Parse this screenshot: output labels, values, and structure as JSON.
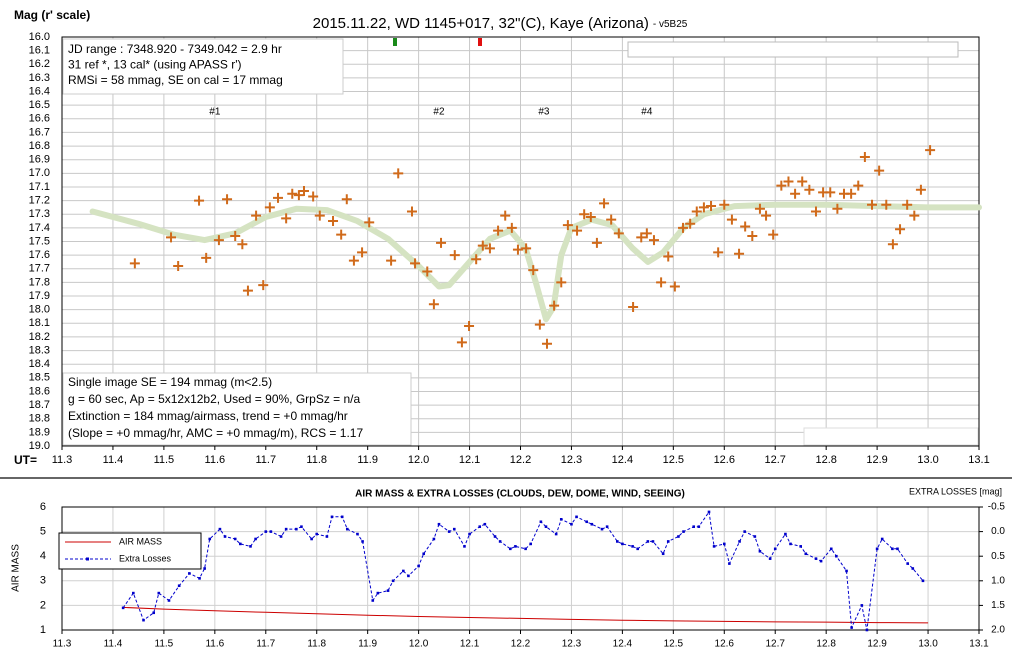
{
  "chart_data": [
    {
      "type": "scatter",
      "title": "2015.11.22, WD 1145+017, 32\"(C), Kaye (Arizona)",
      "subtitle": "- v5B25",
      "ylabel": "Mag (r' scale)",
      "xlabel": "UT=",
      "xlim": [
        11.3,
        13.1
      ],
      "xticks": [
        11.3,
        11.4,
        11.5,
        11.6,
        11.7,
        11.8,
        11.9,
        {
          "value": 12,
          "label": "12.0"
        },
        12.1,
        12.2,
        12.3,
        12.4,
        12.5,
        12.6,
        12.7,
        12.8,
        12.9,
        {
          "value": 13,
          "label": "13.0"
        },
        13.1
      ],
      "ylim": [
        16,
        19
      ],
      "y_inverted": true,
      "yticks": [
        {
          "value": 16,
          "label": "16.0"
        },
        16.1,
        16.2,
        16.3,
        16.4,
        16.5,
        16.6,
        16.7,
        16.8,
        16.9,
        {
          "value": 17,
          "label": "17.0"
        },
        17.1,
        17.2,
        17.3,
        17.4,
        17.5,
        17.6,
        17.7,
        17.8,
        17.9,
        {
          "value": 18,
          "label": "18.0"
        },
        18.1,
        18.2,
        18.3,
        18.4,
        18.5,
        18.6,
        18.7,
        18.8,
        18.9,
        {
          "value": 19,
          "label": "19.0"
        }
      ],
      "grid": true,
      "series": [
        {
          "type": "line",
          "color": "#d5e3c2",
          "x": [
            11.36,
            11.45,
            11.52,
            11.58,
            11.64,
            11.7,
            11.76,
            11.82,
            11.88,
            11.94,
            12.0,
            12.04,
            12.06,
            12.1,
            12.14,
            12.18,
            12.21,
            12.23,
            12.25,
            12.265,
            12.28,
            12.3,
            12.34,
            12.38,
            12.42,
            12.45,
            12.48,
            12.52,
            12.56,
            12.62,
            12.7,
            12.8,
            12.9,
            13.0,
            13.1
          ],
          "values": [
            17.28,
            17.37,
            17.45,
            17.49,
            17.44,
            17.32,
            17.26,
            17.27,
            17.35,
            17.48,
            17.68,
            17.83,
            17.82,
            17.65,
            17.48,
            17.42,
            17.55,
            17.8,
            18.07,
            17.98,
            17.6,
            17.4,
            17.34,
            17.38,
            17.55,
            17.65,
            17.58,
            17.4,
            17.3,
            17.24,
            17.23,
            17.23,
            17.24,
            17.25,
            17.25
          ]
        },
        {
          "type": "scatter",
          "color": "#d06a1a",
          "x": [
            11.443,
            11.514,
            11.528,
            11.569,
            11.583,
            11.608,
            11.624,
            11.64,
            11.654,
            11.665,
            11.681,
            11.695,
            11.708,
            11.724,
            11.74,
            11.752,
            11.765,
            11.775,
            11.793,
            11.806,
            11.832,
            11.848,
            11.859,
            11.873,
            11.889,
            11.903,
            11.946,
            11.96,
            11.987,
            11.993,
            12.017,
            12.03,
            12.044,
            12.071,
            12.085,
            12.099,
            12.113,
            12.126,
            12.14,
            12.156,
            12.17,
            12.183,
            12.195,
            12.211,
            12.225,
            12.238,
            12.252,
            12.266,
            12.28,
            12.293,
            12.311,
            12.325,
            12.338,
            12.35,
            12.364,
            12.378,
            12.393,
            12.421,
            12.437,
            12.448,
            12.462,
            12.476,
            12.49,
            12.503,
            12.519,
            12.533,
            12.546,
            12.56,
            12.574,
            12.588,
            12.6,
            12.615,
            12.629,
            12.641,
            12.655,
            12.67,
            12.682,
            12.696,
            12.712,
            12.726,
            12.739,
            12.753,
            12.767,
            12.78,
            12.794,
            12.808,
            12.822,
            12.835,
            12.849,
            12.863,
            12.876,
            12.89,
            12.904,
            12.918,
            12.931,
            12.945,
            12.959,
            12.973,
            12.986,
            13.004
          ],
          "values": [
            17.66,
            17.47,
            17.68,
            17.2,
            17.62,
            17.49,
            17.19,
            17.46,
            17.52,
            17.86,
            17.31,
            17.82,
            17.25,
            17.18,
            17.33,
            17.15,
            17.16,
            17.13,
            17.17,
            17.31,
            17.35,
            17.45,
            17.19,
            17.64,
            17.58,
            17.36,
            17.64,
            17.0,
            17.28,
            17.66,
            17.72,
            17.96,
            17.51,
            17.6,
            18.24,
            18.12,
            17.63,
            17.53,
            17.55,
            17.42,
            17.31,
            17.4,
            17.56,
            17.55,
            17.71,
            18.11,
            18.25,
            17.97,
            17.8,
            17.38,
            17.42,
            17.3,
            17.32,
            17.51,
            17.22,
            17.34,
            17.44,
            17.98,
            17.47,
            17.44,
            17.49,
            17.8,
            17.61,
            17.83,
            17.4,
            17.37,
            17.28,
            17.25,
            17.24,
            17.58,
            17.23,
            17.34,
            17.59,
            17.39,
            17.46,
            17.26,
            17.31,
            17.45,
            17.09,
            17.06,
            17.15,
            17.06,
            17.12,
            17.28,
            17.14,
            17.14,
            17.26,
            17.15,
            17.15,
            17.09,
            16.88,
            17.23,
            16.98,
            17.23,
            17.52,
            17.41,
            17.23,
            17.31,
            17.12,
            16.83
          ]
        }
      ],
      "annotations": [
        {
          "text": "#1",
          "x": 11.6,
          "y": 16.55
        },
        {
          "text": "#2",
          "x": 12.04,
          "y": 16.55
        },
        {
          "text": "#3",
          "x": 12.246,
          "y": 16.55
        },
        {
          "text": "#4",
          "x": 12.448,
          "y": 16.55
        }
      ],
      "text_boxes": [
        [
          "JD range : 7348.920 - 7349.042 = 2.9 hr",
          "31 ref *, 13 cal* (using APASS r')",
          "RMSi = 58 mmag, SE on cal = 17 mmag"
        ],
        [
          "Single image SE = 194 mmag (m<2.5)",
          "g = 60 sec, Ap = 5x12x12b2, Used = 90%, GrpSz = n/a",
          "Extinction = 184 mmag/airmass, trend = +0 mmag/hr",
          "(Slope = +0 mmag/hr, AMC = +0 mmag/m), RCS = 1.17"
        ]
      ]
    },
    {
      "type": "line",
      "title": "AIR MASS & EXTRA LOSSES (CLOUDS, DEW, DOME, WIND, SEEING)",
      "ylabel": "AIR MASS",
      "y2label": "EXTRA LOSSES [mag]",
      "xlim": [
        11.3,
        13.1
      ],
      "xticks": [
        11.3,
        11.4,
        11.5,
        11.6,
        11.7,
        11.8,
        11.9,
        {
          "value": 12,
          "label": "12.0"
        },
        12.1,
        12.2,
        12.3,
        12.4,
        12.5,
        12.6,
        12.7,
        12.8,
        12.9,
        {
          "value": 13,
          "label": "13.0"
        },
        13.1
      ],
      "ylim": [
        1,
        6
      ],
      "yticks": [
        1,
        2,
        3,
        4,
        5,
        6
      ],
      "y2lim": [
        -0.5,
        2
      ],
      "y2_inverted": true,
      "y2ticks": [
        -0.5,
        {
          "value": 0,
          "label": "0.0"
        },
        0.5,
        {
          "value": 1,
          "label": "1.0"
        },
        1.5,
        {
          "value": 2,
          "label": "2.0"
        }
      ],
      "grid": true,
      "legend": "upper left",
      "series": [
        {
          "name": "AIR MASS",
          "color": "#cc0000",
          "x": [
            11.42,
            11.5,
            11.6,
            11.7,
            11.8,
            11.9,
            12.0,
            12.1,
            12.2,
            12.3,
            12.4,
            12.5,
            12.6,
            12.7,
            12.8,
            12.9,
            13.0
          ],
          "values": [
            1.92,
            1.85,
            1.78,
            1.72,
            1.66,
            1.6,
            1.55,
            1.51,
            1.47,
            1.43,
            1.4,
            1.37,
            1.35,
            1.33,
            1.32,
            1.3,
            1.29
          ]
        },
        {
          "name": "Extra Losses",
          "color": "#0000cc",
          "axis": "y2",
          "x": [
            11.42,
            11.44,
            11.46,
            11.48,
            11.49,
            11.51,
            11.53,
            11.55,
            11.57,
            11.58,
            11.59,
            11.61,
            11.62,
            11.64,
            11.65,
            11.67,
            11.68,
            11.7,
            11.71,
            11.73,
            11.74,
            11.76,
            11.77,
            11.79,
            11.8,
            11.82,
            11.83,
            11.85,
            11.86,
            11.88,
            11.89,
            11.91,
            11.92,
            11.94,
            11.95,
            11.97,
            11.98,
            12.0,
            12.01,
            12.03,
            12.04,
            12.06,
            12.07,
            12.09,
            12.1,
            12.12,
            12.13,
            12.15,
            12.16,
            12.18,
            12.19,
            12.21,
            12.22,
            12.24,
            12.25,
            12.27,
            12.28,
            12.3,
            12.31,
            12.33,
            12.34,
            12.36,
            12.37,
            12.39,
            12.4,
            12.42,
            12.43,
            12.45,
            12.46,
            12.48,
            12.49,
            12.51,
            12.52,
            12.54,
            12.55,
            12.57,
            12.58,
            12.6,
            12.61,
            12.63,
            12.64,
            12.66,
            12.67,
            12.69,
            12.7,
            12.72,
            12.73,
            12.75,
            12.76,
            12.78,
            12.79,
            12.81,
            12.82,
            12.84,
            12.85,
            12.87,
            12.88,
            12.9,
            12.91,
            12.93,
            12.94,
            12.96,
            12.97,
            12.99
          ],
          "values": [
            1.55,
            1.25,
            1.8,
            1.65,
            1.25,
            1.4,
            1.1,
            0.85,
            0.95,
            0.75,
            0.15,
            -0.05,
            0.1,
            0.15,
            0.25,
            0.3,
            0.15,
            0,
            0,
            0.1,
            -0.05,
            -0.05,
            -0.1,
            0.15,
            0.05,
            0.1,
            -0.3,
            -0.3,
            -0.05,
            0.05,
            0.2,
            1.4,
            1.25,
            1.2,
            1.0,
            0.8,
            0.9,
            0.7,
            0.45,
            0.15,
            -0.15,
            0,
            -0.05,
            0.3,
            0.05,
            -0.1,
            -0.15,
            0.1,
            0.2,
            0.35,
            0.3,
            0.35,
            0.25,
            -0.2,
            -0.1,
            0.05,
            -0.25,
            -0.15,
            -0.3,
            -0.2,
            -0.15,
            -0.05,
            -0.1,
            0.2,
            0.25,
            0.3,
            0.35,
            0.2,
            0.2,
            0.45,
            0.2,
            0.1,
            0,
            -0.1,
            -0.1,
            -0.4,
            0.3,
            0.25,
            0.65,
            0.2,
            0,
            0.1,
            0.4,
            0.55,
            0.35,
            0.05,
            0.25,
            0.3,
            0.45,
            0.55,
            0.6,
            0.35,
            0.5,
            0.8,
            1.95,
            1.5,
            2.0,
            0.35,
            0.15,
            0.35,
            0.35,
            0.65,
            0.75,
            1.0
          ]
        }
      ]
    }
  ]
}
